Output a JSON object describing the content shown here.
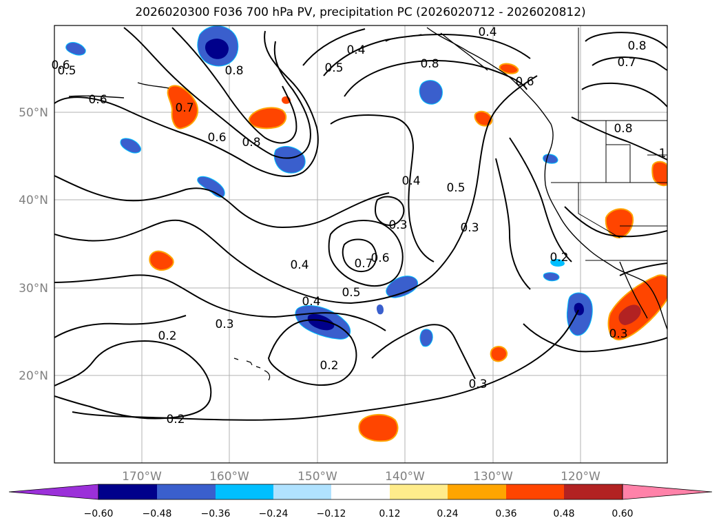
{
  "title": "2026020300 F036 700 hPa PV, precipitation PC (2026020712 - 2026020812)",
  "map": {
    "lon_labels": [
      "170°W",
      "160°W",
      "150°W",
      "140°W",
      "130°W",
      "120°W"
    ],
    "lat_labels": [
      "50°N",
      "40°N",
      "30°N",
      "20°N"
    ],
    "contour_labels": [
      "0.4",
      "0.4",
      "0.8",
      "0.7",
      "0.8",
      "0.5",
      "0.6",
      "0.5",
      "0.8",
      "0.6",
      "0.7",
      "0.6",
      "0.8",
      "0.8",
      "1",
      "0.6",
      "0.4",
      "0.5",
      "0.3",
      "0.3",
      "0.7",
      "0.6",
      "0.4",
      "0.5",
      "0.4",
      "0.3",
      "0.2",
      "0.2",
      "0.2",
      "0.3",
      "0.2",
      "0.3"
    ]
  },
  "colorbar": {
    "ticks": [
      "−0.60",
      "−0.48",
      "−0.36",
      "−0.24",
      "−0.12",
      "0.12",
      "0.24",
      "0.36",
      "0.48",
      "0.60"
    ],
    "under_color": "#9b30d9",
    "over_color": "#ff82a9",
    "colors": [
      "#00008b",
      "#3a5fcd",
      "#00bfff",
      "#b0e2ff",
      "#ffffff",
      "#ffec8b",
      "#ffa500",
      "#ff4500",
      "#b22222"
    ]
  }
}
